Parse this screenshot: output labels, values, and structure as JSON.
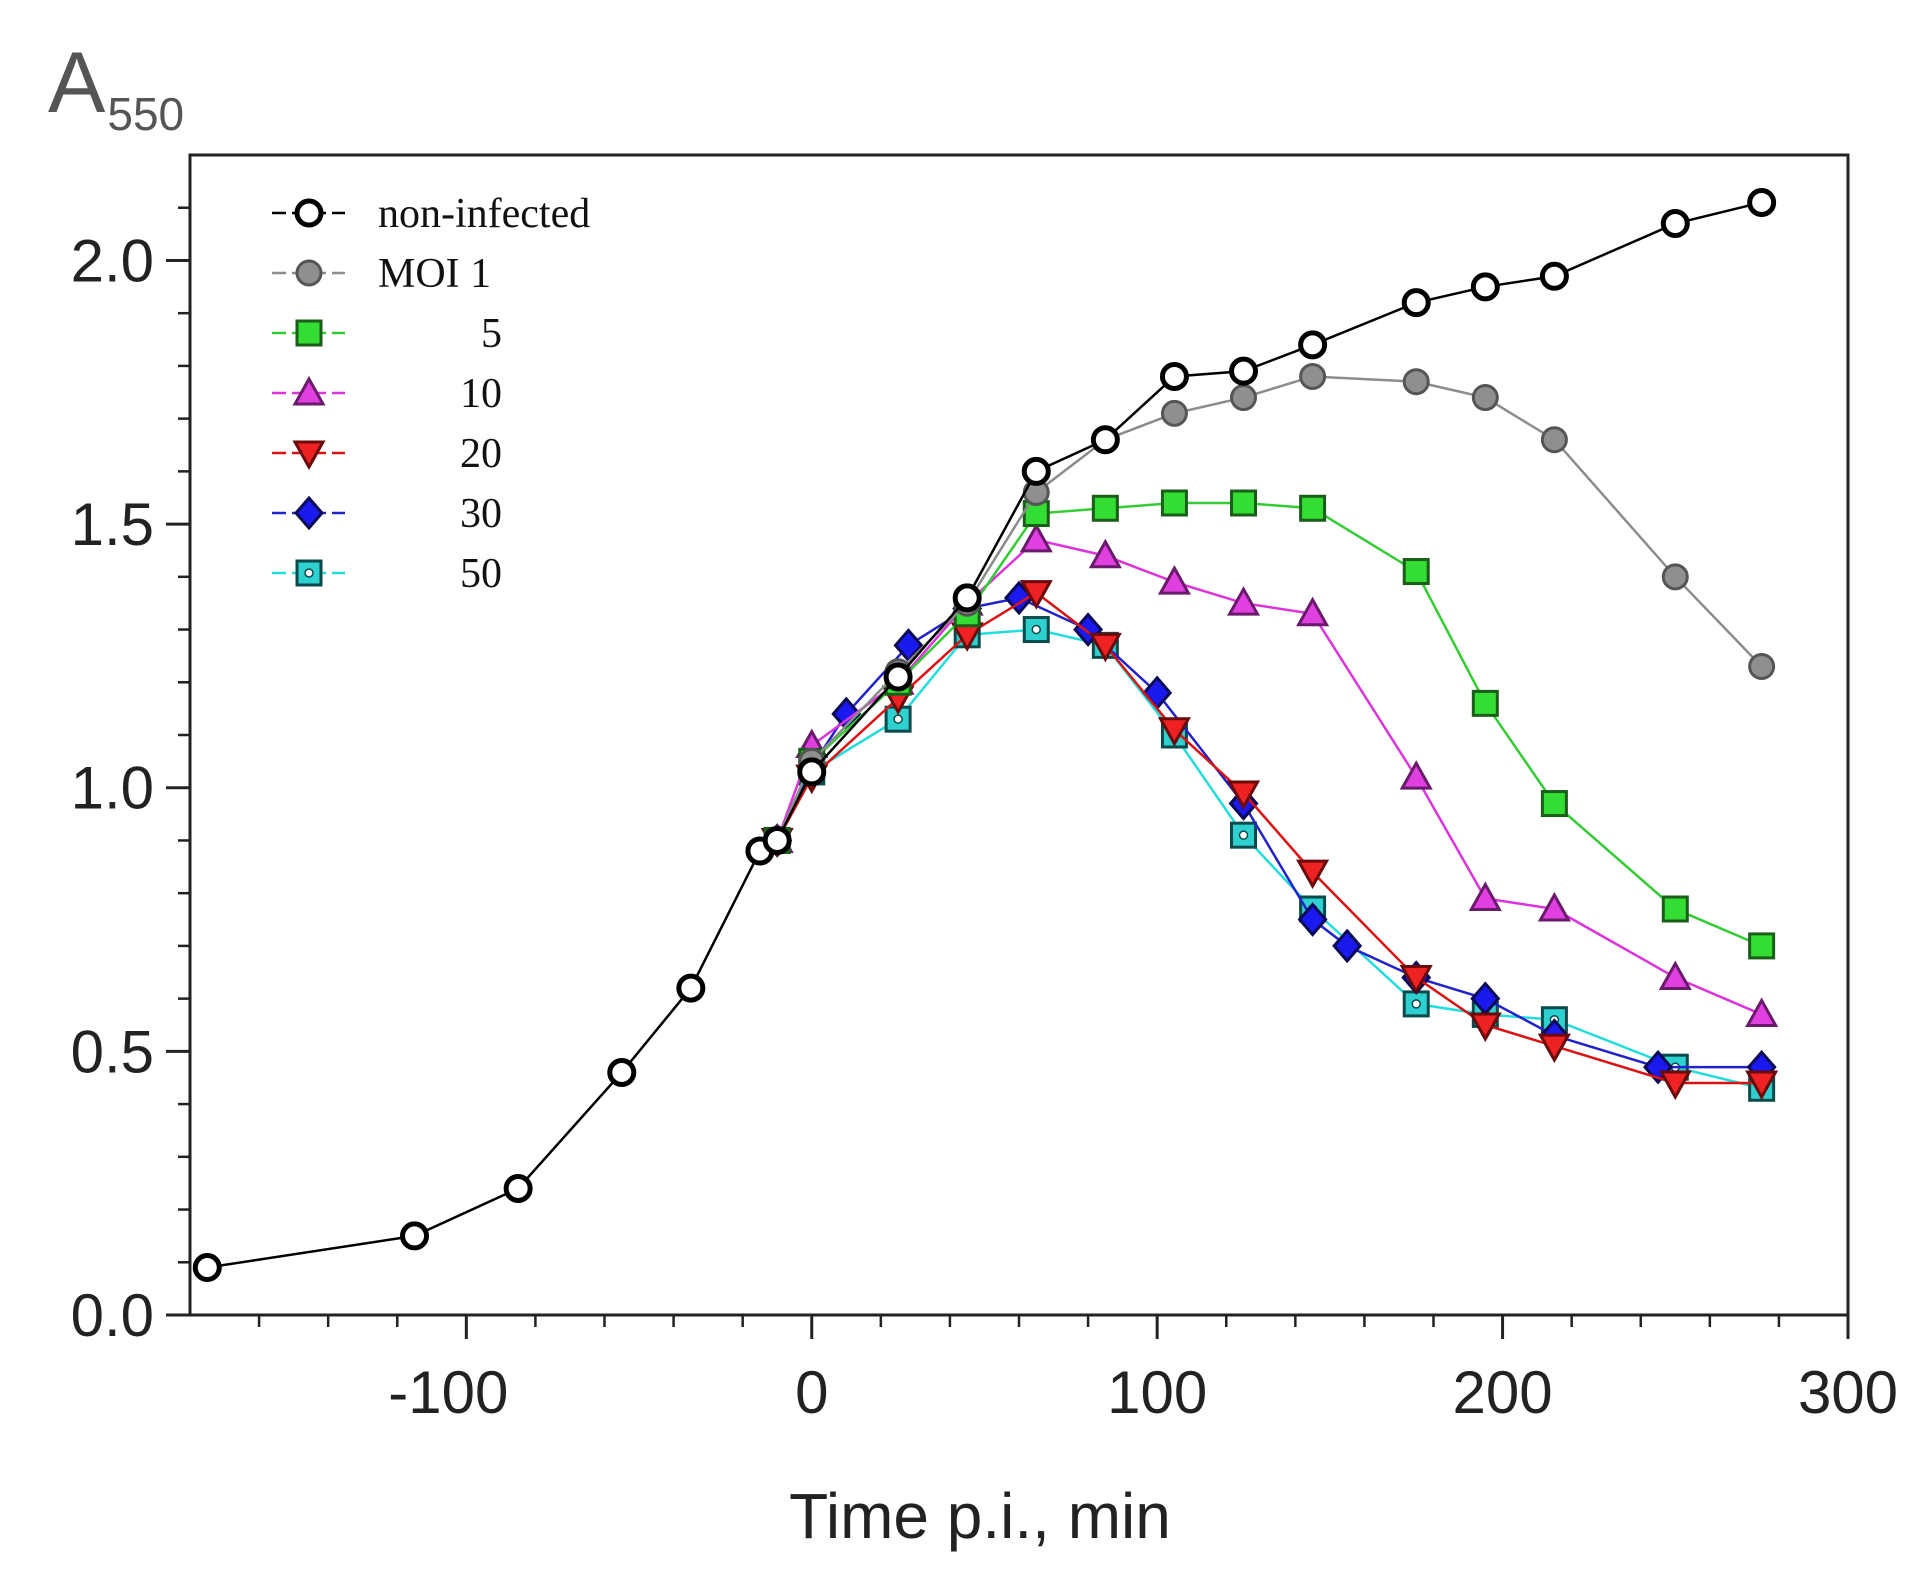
{
  "chart_data": {
    "type": "line",
    "title": "",
    "ylabel_main": "A",
    "ylabel_sub": "550",
    "xlabel": "Time p.i., min",
    "xlim": [
      -180,
      300
    ],
    "ylim": [
      0,
      2.2
    ],
    "xticks": [
      -100,
      0,
      100,
      200,
      300
    ],
    "xtick_labels": [
      "-100",
      "0",
      "100",
      "200",
      "300"
    ],
    "yticks": [
      0,
      0.5,
      1.0,
      1.5,
      2.0
    ],
    "ytick_labels": [
      "0.0",
      "0.5",
      "1.0",
      "1.5",
      "2.0"
    ],
    "grid": false,
    "legend_position": "top-left",
    "series": [
      {
        "name": "non-infected",
        "legend_label": "non-infected",
        "marker": "circle-open",
        "line_color": "#000000",
        "fill": "#ffffff",
        "stroke": "#000000",
        "points": [
          [
            -175,
            0.09
          ],
          [
            -115,
            0.15
          ],
          [
            -85,
            0.24
          ],
          [
            -55,
            0.46
          ],
          [
            -35,
            0.62
          ],
          [
            -15,
            0.88
          ],
          [
            -10,
            0.9
          ],
          [
            0,
            1.03
          ],
          [
            25,
            1.21
          ],
          [
            45,
            1.36
          ],
          [
            65,
            1.6
          ],
          [
            85,
            1.66
          ],
          [
            105,
            1.78
          ],
          [
            125,
            1.79
          ],
          [
            145,
            1.84
          ],
          [
            175,
            1.92
          ],
          [
            195,
            1.95
          ],
          [
            215,
            1.97
          ],
          [
            250,
            2.07
          ],
          [
            275,
            2.11
          ]
        ]
      },
      {
        "name": "MOI 1",
        "legend_label": "MOI 1",
        "marker": "circle",
        "line_color": "#8c8c8c",
        "fill": "#8f8f8f",
        "stroke": "#555555",
        "points": [
          [
            -10,
            0.9
          ],
          [
            0,
            1.05
          ],
          [
            25,
            1.22
          ],
          [
            45,
            1.35
          ],
          [
            65,
            1.56
          ],
          [
            85,
            1.66
          ],
          [
            105,
            1.71
          ],
          [
            125,
            1.74
          ],
          [
            145,
            1.78
          ],
          [
            175,
            1.77
          ],
          [
            195,
            1.74
          ],
          [
            215,
            1.66
          ],
          [
            250,
            1.4
          ],
          [
            275,
            1.23
          ]
        ]
      },
      {
        "name": "MOI 5",
        "legend_label": "5",
        "marker": "square",
        "line_color": "#33cc33",
        "fill": "#33dd33",
        "stroke": "#1a5e1a",
        "points": [
          [
            -10,
            0.9
          ],
          [
            0,
            1.05
          ],
          [
            25,
            1.2
          ],
          [
            45,
            1.33
          ],
          [
            65,
            1.52
          ],
          [
            85,
            1.53
          ],
          [
            105,
            1.54
          ],
          [
            125,
            1.54
          ],
          [
            145,
            1.53
          ],
          [
            175,
            1.41
          ],
          [
            195,
            1.16
          ],
          [
            215,
            0.97
          ],
          [
            250,
            0.77
          ],
          [
            275,
            0.7
          ]
        ]
      },
      {
        "name": "MOI 10",
        "legend_label": "10",
        "marker": "triangle-up",
        "line_color": "#dd33dd",
        "fill": "#e040e0",
        "stroke": "#6a1a6a",
        "points": [
          [
            -10,
            0.9
          ],
          [
            0,
            1.08
          ],
          [
            25,
            1.2
          ],
          [
            45,
            1.35
          ],
          [
            65,
            1.47
          ],
          [
            85,
            1.44
          ],
          [
            105,
            1.39
          ],
          [
            125,
            1.35
          ],
          [
            145,
            1.33
          ],
          [
            175,
            1.02
          ],
          [
            195,
            0.79
          ],
          [
            215,
            0.77
          ],
          [
            250,
            0.64
          ],
          [
            275,
            0.57
          ]
        ]
      },
      {
        "name": "MOI 20",
        "legend_label": "20",
        "marker": "triangle-down",
        "line_color": "#dd1111",
        "fill": "#ee2222",
        "stroke": "#6a0a0a",
        "points": [
          [
            -10,
            0.9
          ],
          [
            0,
            1.02
          ],
          [
            25,
            1.17
          ],
          [
            45,
            1.29
          ],
          [
            65,
            1.37
          ],
          [
            85,
            1.27
          ],
          [
            105,
            1.11
          ],
          [
            125,
            0.99
          ],
          [
            145,
            0.84
          ],
          [
            175,
            0.64
          ],
          [
            195,
            0.55
          ],
          [
            215,
            0.51
          ],
          [
            250,
            0.44
          ],
          [
            275,
            0.44
          ]
        ]
      },
      {
        "name": "MOI 30",
        "legend_label": "30",
        "marker": "diamond",
        "line_color": "#2222cc",
        "fill": "#1a1aee",
        "stroke": "#0a0a55",
        "points": [
          [
            -10,
            0.9
          ],
          [
            0,
            1.04
          ],
          [
            10,
            1.14
          ],
          [
            28,
            1.27
          ],
          [
            45,
            1.34
          ],
          [
            60,
            1.36
          ],
          [
            80,
            1.3
          ],
          [
            100,
            1.18
          ],
          [
            125,
            0.97
          ],
          [
            145,
            0.75
          ],
          [
            155,
            0.7
          ],
          [
            175,
            0.64
          ],
          [
            195,
            0.6
          ],
          [
            215,
            0.53
          ],
          [
            245,
            0.47
          ],
          [
            275,
            0.47
          ]
        ]
      },
      {
        "name": "MOI 50",
        "legend_label": "50",
        "marker": "square-dot",
        "line_color": "#22dddd",
        "fill": "#2ed0d0",
        "stroke": "#0a4a4a",
        "points": [
          [
            -10,
            0.9
          ],
          [
            0,
            1.03
          ],
          [
            25,
            1.13
          ],
          [
            45,
            1.29
          ],
          [
            65,
            1.3
          ],
          [
            85,
            1.27
          ],
          [
            105,
            1.1
          ],
          [
            125,
            0.91
          ],
          [
            145,
            0.77
          ],
          [
            175,
            0.59
          ],
          [
            195,
            0.57
          ],
          [
            215,
            0.56
          ],
          [
            250,
            0.47
          ],
          [
            275,
            0.43
          ]
        ]
      }
    ]
  }
}
